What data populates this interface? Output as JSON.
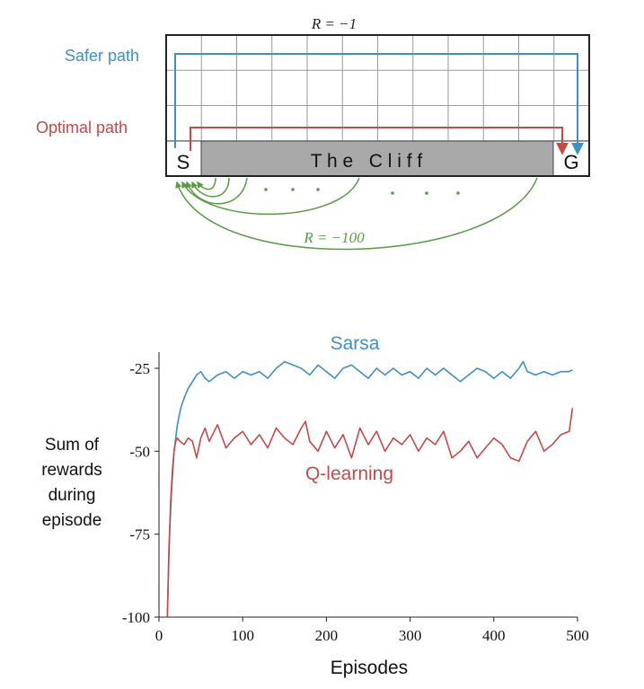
{
  "colors": {
    "sarsa": "#3f8fc2",
    "qlearning": "#c24a4a",
    "cliff_fill": "#a9a9a9",
    "arc": "#5a9a48",
    "grid": "#9a9a9a",
    "axis": "#222222"
  },
  "gridworld": {
    "columns": 12,
    "rows": 4,
    "start_label": "S",
    "goal_label": "G",
    "cliff_label": "T h e   C l i f f",
    "step_reward_label": "R = −1",
    "cliff_reward_label": "R = −100",
    "safer_path_label": "Safer path",
    "optimal_path_label": "Optimal path"
  },
  "chart_data": {
    "type": "line",
    "xlabel": "Episodes",
    "ylabel": [
      "Sum of",
      "rewards",
      "during",
      "episode"
    ],
    "xlim": [
      0,
      500
    ],
    "ylim": [
      -100,
      -20
    ],
    "x_ticks": [
      0,
      100,
      200,
      300,
      400,
      500
    ],
    "y_ticks": [
      -25,
      -50,
      -75,
      -100
    ],
    "x_tick_labels": [
      "0",
      "100",
      "200",
      "300",
      "400",
      "500"
    ],
    "y_tick_labels": [
      "-25",
      "-50",
      "-75",
      "-100"
    ],
    "series": [
      {
        "name": "Sarsa",
        "x": [
          10,
          12,
          15,
          18,
          22,
          26,
          30,
          35,
          40,
          45,
          50,
          55,
          60,
          70,
          80,
          90,
          100,
          110,
          120,
          130,
          140,
          150,
          160,
          170,
          180,
          190,
          200,
          210,
          220,
          230,
          240,
          250,
          260,
          270,
          280,
          290,
          300,
          310,
          320,
          330,
          340,
          350,
          360,
          370,
          380,
          390,
          400,
          410,
          420,
          430,
          435,
          440,
          450,
          460,
          470,
          480,
          490,
          494
        ],
        "y": [
          -100,
          -78,
          -62,
          -50,
          -42,
          -37,
          -34,
          -31,
          -29,
          -27,
          -26,
          -28,
          -29,
          -27,
          -26,
          -28,
          -26,
          -27,
          -26,
          -28,
          -25,
          -23,
          -24,
          -25,
          -27,
          -24,
          -26,
          -28,
          -25,
          -24,
          -26,
          -28,
          -25,
          -27,
          -25,
          -27,
          -26,
          -28,
          -25,
          -27,
          -25,
          -27,
          -29,
          -27,
          -25,
          -26,
          -28,
          -26,
          -28,
          -25,
          -23,
          -26,
          -27,
          -26,
          -27,
          -26,
          -26,
          -25.5
        ]
      },
      {
        "name": "Q-learning",
        "x": [
          10,
          12,
          14,
          16,
          18,
          20,
          22,
          25,
          30,
          35,
          40,
          45,
          50,
          55,
          60,
          70,
          80,
          90,
          100,
          110,
          120,
          130,
          140,
          150,
          160,
          170,
          175,
          180,
          190,
          200,
          210,
          220,
          230,
          240,
          250,
          260,
          270,
          280,
          290,
          300,
          310,
          320,
          330,
          340,
          350,
          360,
          370,
          380,
          390,
          400,
          410,
          420,
          430,
          440,
          450,
          460,
          470,
          480,
          490,
          494
        ],
        "y": [
          -100,
          -80,
          -65,
          -56,
          -50,
          -47,
          -46,
          -47,
          -48,
          -46,
          -47,
          -52,
          -46,
          -43,
          -47,
          -42,
          -49,
          -46,
          -44,
          -48,
          -45,
          -49,
          -43,
          -46,
          -48,
          -43,
          -41,
          -47,
          -50,
          -44,
          -49,
          -45,
          -52,
          -43,
          -48,
          -44,
          -50,
          -46,
          -48,
          -45,
          -50,
          -46,
          -48,
          -44,
          -52,
          -50,
          -47,
          -52,
          -49,
          -46,
          -48,
          -52,
          -53,
          -47,
          -44,
          -50,
          -48,
          -45,
          -44,
          -37
        ]
      }
    ]
  }
}
